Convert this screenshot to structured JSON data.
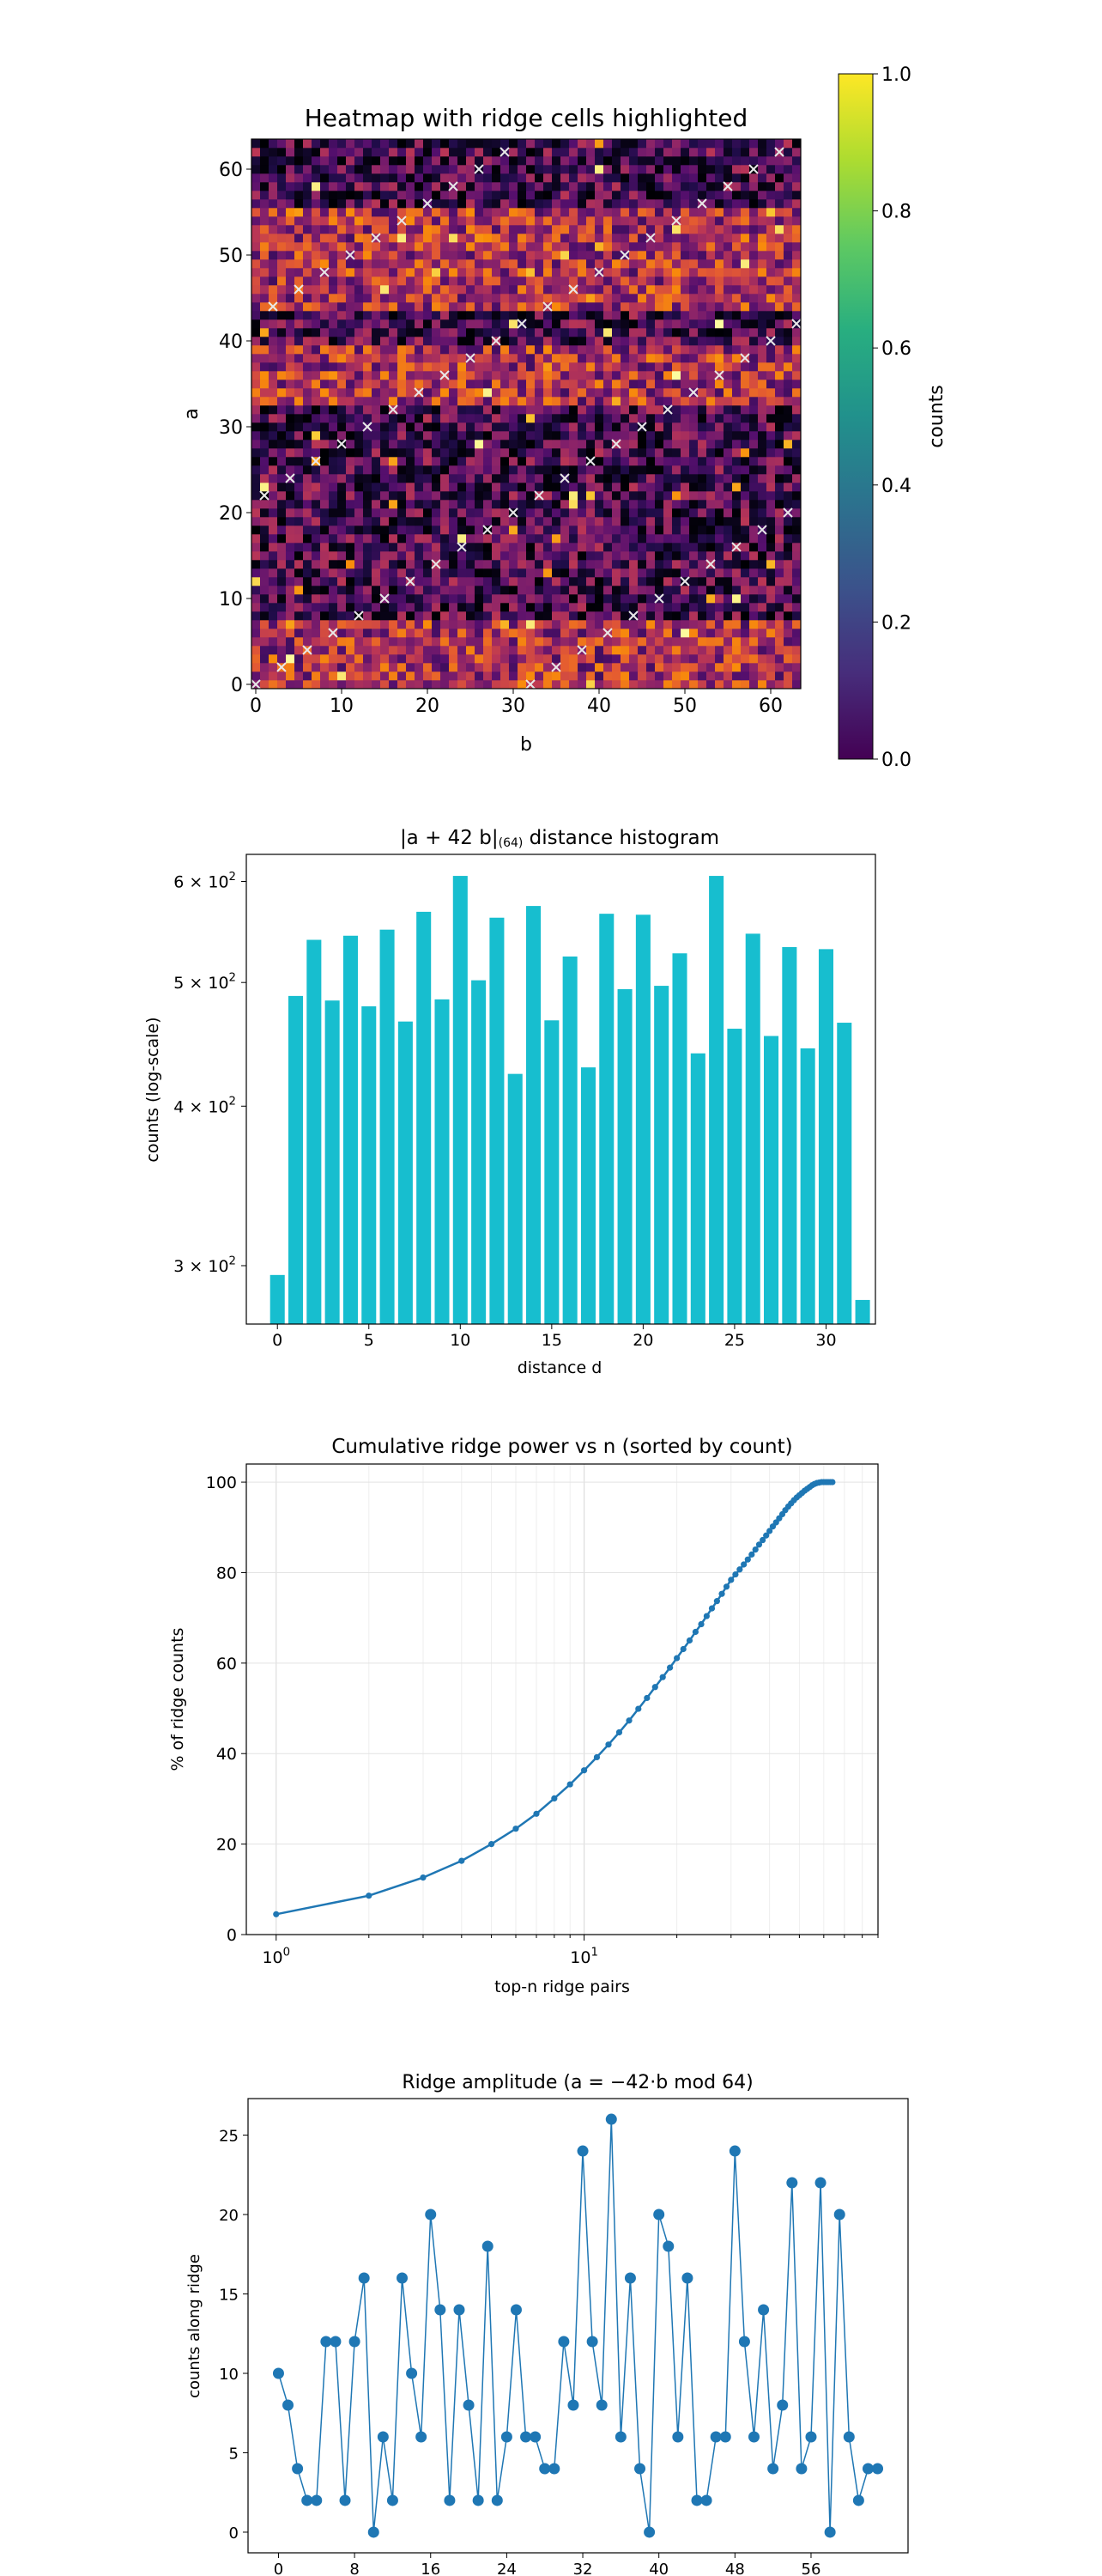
{
  "chart_data": [
    {
      "type": "heatmap",
      "title": "Heatmap with ridge cells highlighted",
      "xlabel": "b",
      "ylabel": "a",
      "xlim": [
        0,
        63
      ],
      "ylim": [
        0,
        63
      ],
      "x_ticks": [
        0,
        10,
        20,
        30,
        40,
        50,
        60
      ],
      "y_ticks": [
        0,
        10,
        20,
        30,
        40,
        50,
        60
      ],
      "colormap": "inferno",
      "marker": "×",
      "marker_color": "#e8e8e8",
      "ridge_rule": "a = −42·b mod 64",
      "bright_a_bands": [
        [
          33,
          39
        ],
        [
          0,
          7
        ],
        [
          44,
          55
        ]
      ],
      "ridge_points": [
        [
          0,
          0
        ],
        [
          1,
          22
        ],
        [
          2,
          44
        ],
        [
          3,
          2
        ],
        [
          4,
          24
        ],
        [
          5,
          46
        ],
        [
          6,
          4
        ],
        [
          7,
          26
        ],
        [
          8,
          48
        ],
        [
          9,
          6
        ],
        [
          10,
          28
        ],
        [
          11,
          50
        ],
        [
          12,
          8
        ],
        [
          13,
          30
        ],
        [
          14,
          52
        ],
        [
          15,
          10
        ],
        [
          16,
          32
        ],
        [
          17,
          54
        ],
        [
          18,
          12
        ],
        [
          19,
          34
        ],
        [
          20,
          56
        ],
        [
          21,
          14
        ],
        [
          22,
          36
        ],
        [
          23,
          58
        ],
        [
          24,
          16
        ],
        [
          25,
          38
        ],
        [
          26,
          60
        ],
        [
          27,
          18
        ],
        [
          28,
          40
        ],
        [
          29,
          62
        ],
        [
          30,
          20
        ],
        [
          31,
          42
        ],
        [
          32,
          0
        ],
        [
          33,
          22
        ],
        [
          34,
          44
        ],
        [
          35,
          2
        ],
        [
          36,
          24
        ],
        [
          37,
          46
        ],
        [
          38,
          4
        ],
        [
          39,
          26
        ],
        [
          40,
          48
        ],
        [
          41,
          6
        ],
        [
          42,
          28
        ],
        [
          43,
          50
        ],
        [
          44,
          8
        ],
        [
          45,
          30
        ],
        [
          46,
          52
        ],
        [
          47,
          10
        ],
        [
          48,
          32
        ],
        [
          49,
          54
        ],
        [
          50,
          12
        ],
        [
          51,
          34
        ],
        [
          52,
          56
        ],
        [
          53,
          14
        ],
        [
          54,
          36
        ],
        [
          55,
          58
        ],
        [
          56,
          16
        ],
        [
          57,
          38
        ],
        [
          58,
          60
        ],
        [
          59,
          18
        ],
        [
          60,
          40
        ],
        [
          61,
          62
        ],
        [
          62,
          20
        ],
        [
          63,
          42
        ]
      ],
      "colorbar": {
        "label": "counts",
        "colormap": "viridis",
        "range": [
          0.0,
          1.0
        ],
        "ticks": [
          "0.0",
          "0.2",
          "0.4",
          "0.6",
          "0.8",
          "1.0"
        ]
      }
    },
    {
      "type": "bar",
      "title": "|a + 42 b|",
      "title_sub": "(64)",
      "title_suffix": " distance histogram",
      "xlabel": "distance d",
      "ylabel": "counts (log-scale)",
      "yscale": "log",
      "ylim": [
        270,
        630
      ],
      "xlim": [
        -1.7,
        32.7
      ],
      "x_ticks": [
        0,
        5,
        10,
        15,
        20,
        25,
        30
      ],
      "y_ticks": [
        {
          "value": 300,
          "label": "3 × 10",
          "exp": "2"
        },
        {
          "value": 400,
          "label": "4 × 10",
          "exp": "2"
        },
        {
          "value": 500,
          "label": "5 × 10",
          "exp": "2"
        },
        {
          "value": 600,
          "label": "6 × 10",
          "exp": "2"
        }
      ],
      "bar_color": "#17becf",
      "categories": [
        0,
        1,
        2,
        3,
        4,
        5,
        6,
        7,
        8,
        9,
        10,
        11,
        12,
        13,
        14,
        15,
        16,
        17,
        18,
        19,
        20,
        21,
        22,
        23,
        24,
        25,
        26,
        27,
        28,
        29,
        30,
        31,
        32
      ],
      "values": [
        295,
        488,
        540,
        484,
        544,
        479,
        550,
        466,
        568,
        485,
        606,
        502,
        562,
        424,
        574,
        467,
        524,
        429,
        566,
        494,
        565,
        497,
        527,
        440,
        606,
        460,
        546,
        454,
        533,
        444,
        531,
        465,
        282
      ]
    },
    {
      "type": "line",
      "title": "Cumulative ridge power vs  n  (sorted by count)",
      "xlabel": "top-n ridge pairs",
      "ylabel": "% of ridge counts",
      "xscale": "log",
      "xlim": [
        0.8,
        90
      ],
      "ylim": [
        0,
        104
      ],
      "x_ticks": [
        {
          "value": 1,
          "label": "10",
          "exp": "0"
        },
        {
          "value": 10,
          "label": "10",
          "exp": "1"
        }
      ],
      "y_ticks": [
        0,
        20,
        40,
        60,
        80,
        100
      ],
      "grid": true,
      "color": "#1f77b4",
      "x": [
        1,
        2,
        3,
        4,
        5,
        6,
        7,
        8,
        9,
        10,
        11,
        12,
        13,
        14,
        15,
        16,
        17,
        18,
        19,
        20,
        21,
        22,
        23,
        24,
        25,
        26,
        27,
        28,
        29,
        30,
        31,
        32,
        33,
        34,
        35,
        36,
        37,
        38,
        39,
        40,
        41,
        42,
        43,
        44,
        45,
        46,
        47,
        48,
        49,
        50,
        51,
        52,
        53,
        54,
        55,
        56,
        57,
        58,
        59,
        60,
        61,
        62,
        63,
        64
      ],
      "y": [
        4.5,
        8.6,
        12.6,
        16.3,
        20.0,
        23.4,
        26.7,
        30.1,
        33.2,
        36.3,
        39.2,
        42.0,
        44.7,
        47.3,
        49.9,
        52.3,
        54.7,
        56.9,
        59.0,
        61.1,
        63.1,
        65.0,
        66.9,
        68.6,
        70.4,
        72.1,
        73.7,
        75.3,
        76.9,
        78.4,
        79.6,
        80.7,
        81.8,
        82.9,
        84.0,
        85.1,
        86.2,
        87.2,
        88.2,
        89.2,
        90.2,
        91.1,
        92.0,
        92.9,
        93.8,
        94.6,
        95.3,
        96.0,
        96.6,
        97.1,
        97.6,
        98.1,
        98.5,
        98.9,
        99.3,
        99.6,
        99.8,
        99.9,
        100.0,
        100.0,
        100.0,
        100.0,
        100.0,
        100.0
      ]
    },
    {
      "type": "line",
      "title": "Ridge amplitude  (a = −42·b mod 64)",
      "xlabel": "b",
      "ylabel": "counts along ridge",
      "xlim": [
        -3.2,
        66.2
      ],
      "ylim": [
        -1.3,
        27.3
      ],
      "x_ticks": [
        0,
        8,
        16,
        24,
        32,
        40,
        48,
        56
      ],
      "y_ticks": [
        0,
        5,
        10,
        15,
        20,
        25
      ],
      "color": "#1f77b4",
      "x": [
        0,
        1,
        2,
        3,
        4,
        5,
        6,
        7,
        8,
        9,
        10,
        11,
        12,
        13,
        14,
        15,
        16,
        17,
        18,
        19,
        20,
        21,
        22,
        23,
        24,
        25,
        26,
        27,
        28,
        29,
        30,
        31,
        32,
        33,
        34,
        35,
        36,
        37,
        38,
        39,
        40,
        41,
        42,
        43,
        44,
        45,
        46,
        47,
        48,
        49,
        50,
        51,
        52,
        53,
        54,
        55,
        56,
        57,
        58,
        59,
        60,
        61,
        62,
        63
      ],
      "y": [
        10,
        8,
        4,
        2,
        2,
        12,
        12,
        2,
        12,
        16,
        0,
        6,
        2,
        16,
        10,
        6,
        20,
        14,
        2,
        14,
        8,
        2,
        18,
        2,
        6,
        14,
        6,
        6,
        4,
        4,
        12,
        8,
        24,
        12,
        8,
        26,
        6,
        16,
        4,
        0,
        20,
        18,
        6,
        16,
        2,
        2,
        6,
        6,
        24,
        12,
        6,
        14,
        4,
        8,
        22,
        4,
        6,
        22,
        0,
        20,
        6,
        2,
        4,
        4
      ]
    }
  ]
}
